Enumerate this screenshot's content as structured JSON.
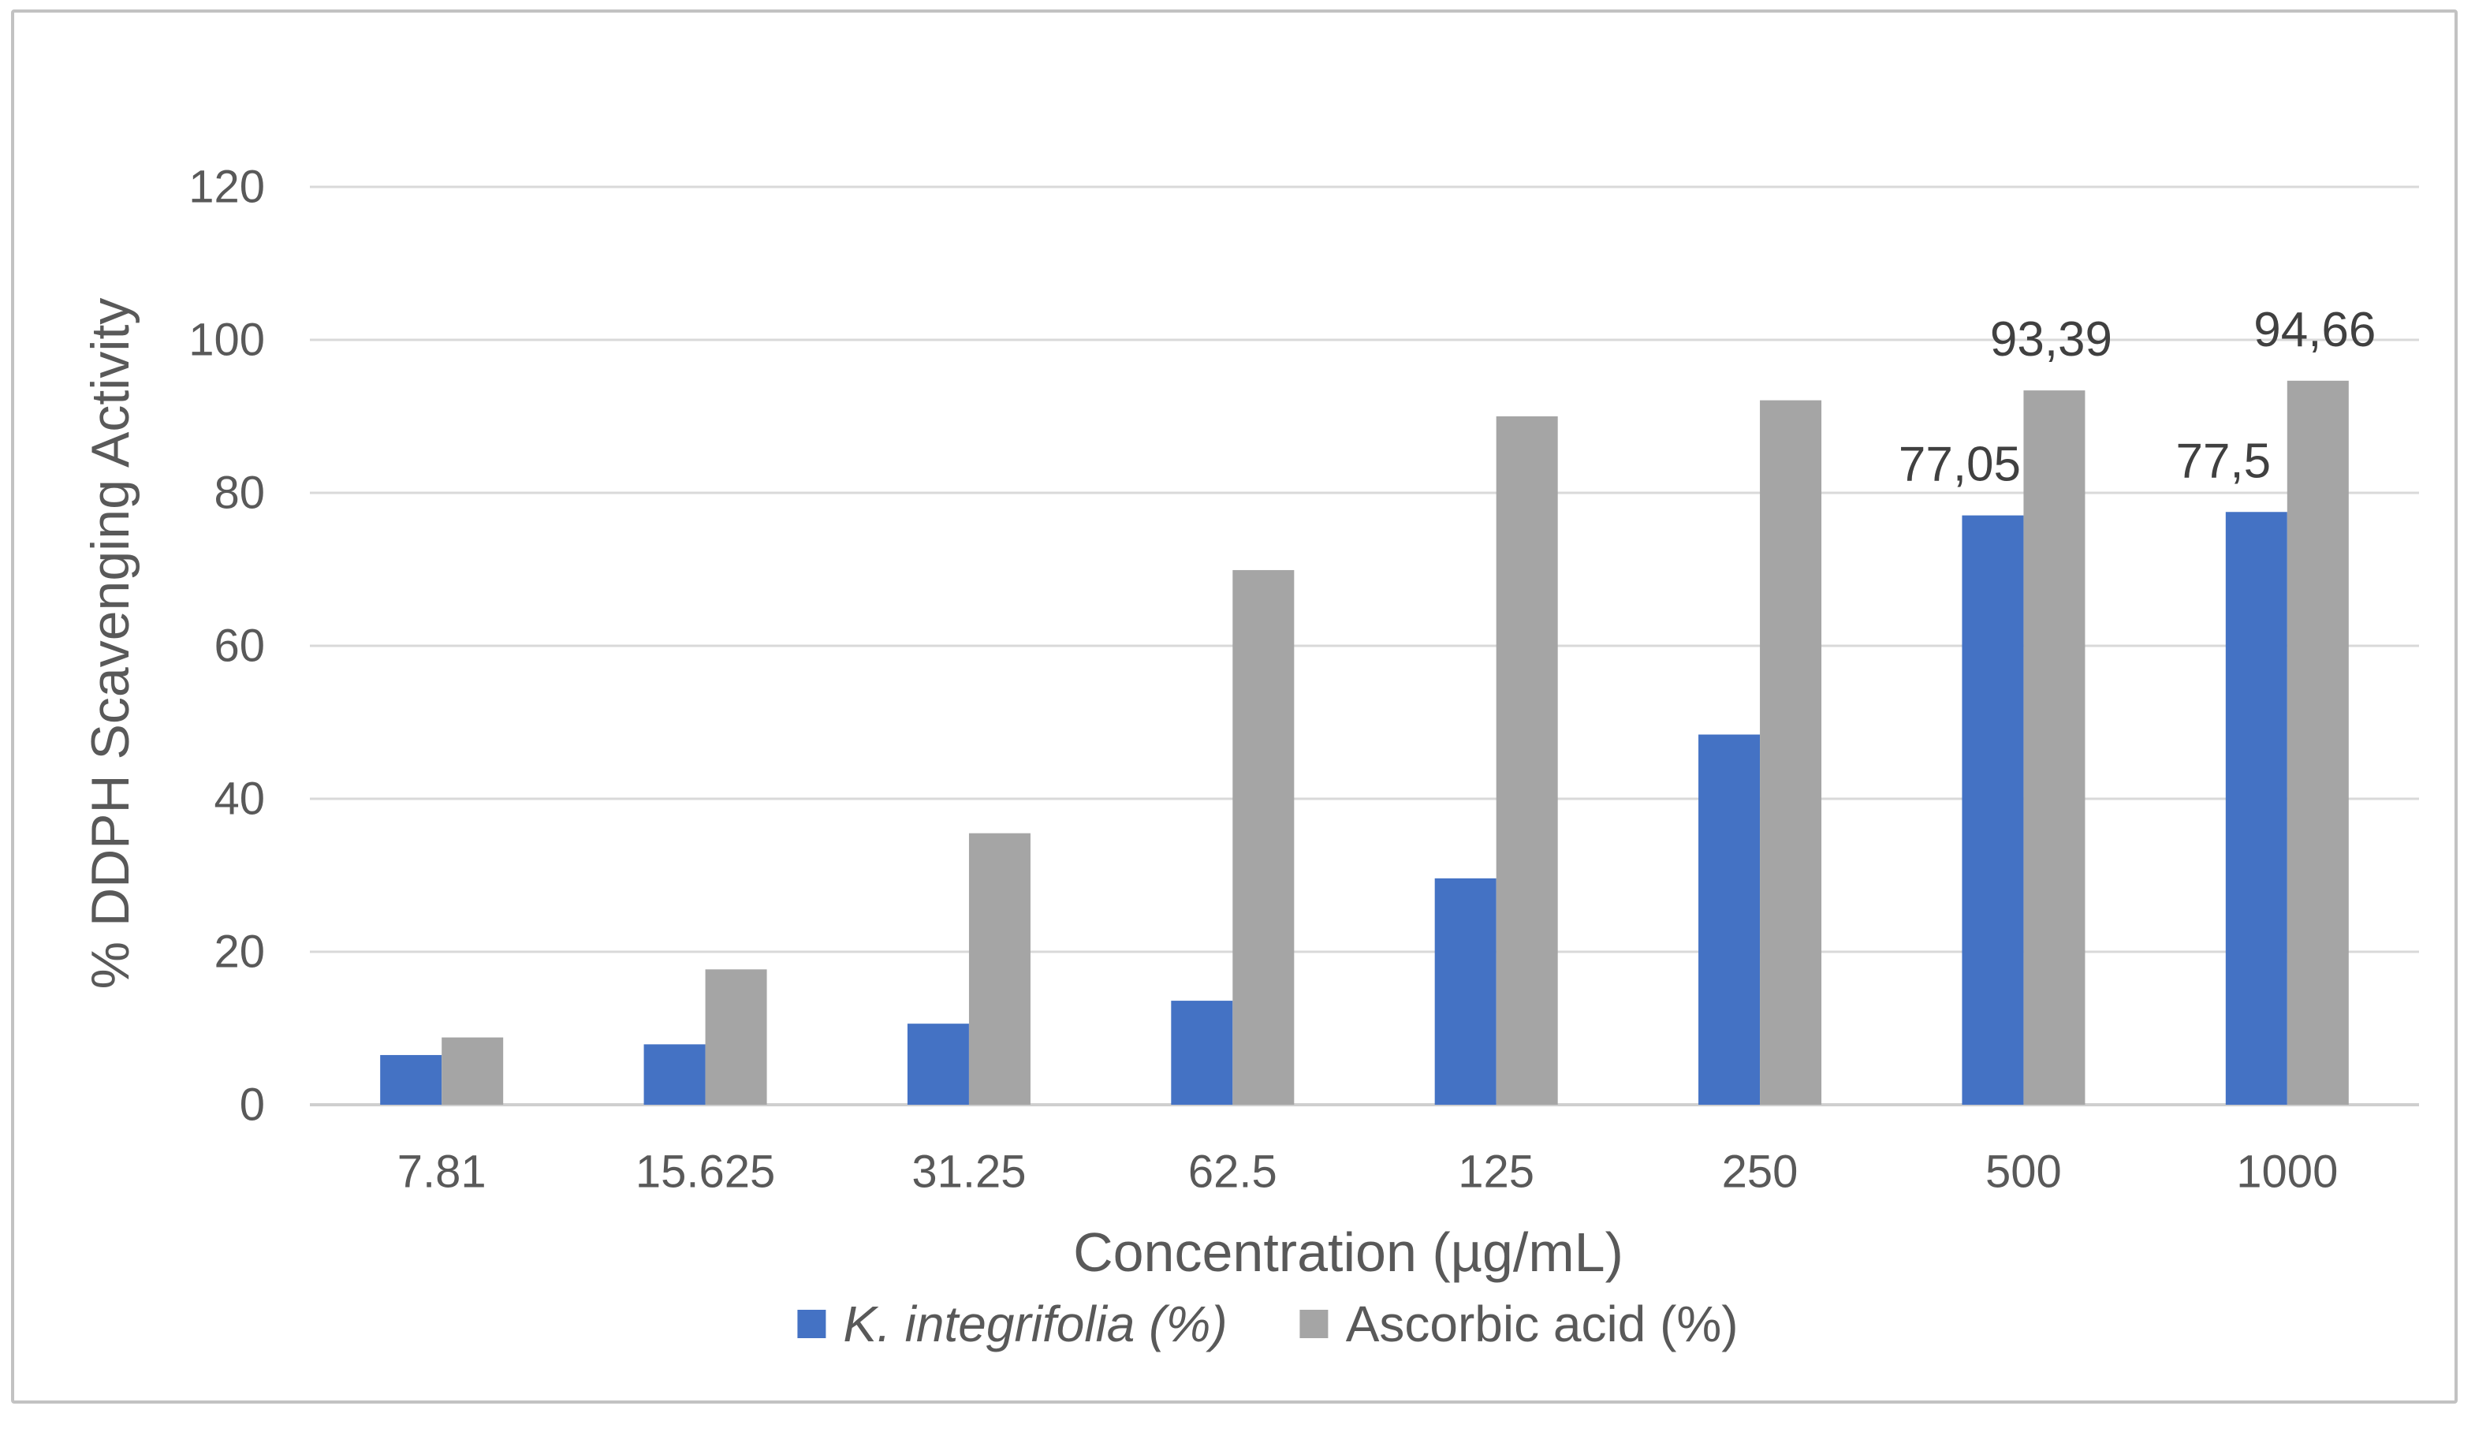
{
  "chart_data": {
    "type": "bar",
    "title": "",
    "ylabel": "% DDPH Scavenging Activity",
    "xlabel": "Concentration (µg/mL)",
    "categories": [
      "7.81",
      "15.625",
      "31.25",
      "62.5",
      "125",
      "250",
      "500",
      "1000"
    ],
    "series": [
      {
        "name": "K. integrifolia (%)",
        "color": "#4472C4",
        "italic": true,
        "values": [
          6.5,
          7.9,
          10.6,
          13.6,
          29.6,
          48.4,
          77.05,
          77.5
        ],
        "data_labels": [
          null,
          null,
          null,
          null,
          null,
          null,
          "77,05",
          "77,5"
        ]
      },
      {
        "name": "Ascorbic acid (%)",
        "color": "#A5A5A5",
        "italic": false,
        "values": [
          8.8,
          17.7,
          35.5,
          69.9,
          90.0,
          92.1,
          93.39,
          94.66
        ],
        "data_labels": [
          null,
          null,
          null,
          null,
          null,
          null,
          "93,39",
          "94,66"
        ]
      }
    ],
    "ylim": [
      0,
      120
    ],
    "ytick_step": 20,
    "yticks": [
      "0",
      "20",
      "40",
      "60",
      "80",
      "100",
      "120"
    ],
    "grid": "horizontal",
    "legend_position": "bottom",
    "style": {
      "grid_color": "#D9D9D9",
      "axis_line_color": "#CFCFCF",
      "tick_text_color": "#595959",
      "data_label_color": "#404040"
    }
  }
}
